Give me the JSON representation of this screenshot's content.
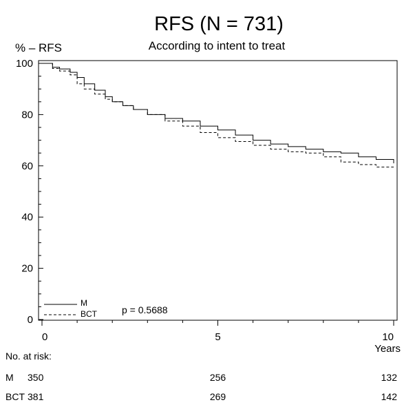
{
  "chart_data": {
    "type": "line",
    "title": "RFS (N = 731)",
    "subtitle": "According to intent to treat",
    "ylabel": "% – RFS",
    "xlabel": "Years",
    "xlim": [
      0,
      10
    ],
    "ylim": [
      0,
      100
    ],
    "x_ticks": [
      0,
      5,
      10
    ],
    "y_ticks": [
      0,
      20,
      40,
      60,
      80,
      100
    ],
    "grid": false,
    "legend_position": "bottom-left",
    "annotation": "p = 0.5688",
    "series": [
      {
        "name": "M",
        "style": "solid",
        "x": [
          0,
          0.3,
          0.5,
          0.8,
          1.0,
          1.2,
          1.5,
          1.8,
          2.0,
          2.3,
          2.6,
          3.0,
          3.5,
          4.0,
          4.5,
          5.0,
          5.5,
          6.0,
          6.5,
          7.0,
          7.5,
          8.0,
          8.5,
          9.0,
          9.5,
          10.0
        ],
        "y": [
          100,
          98.5,
          97.8,
          96.5,
          94.5,
          92,
          89.5,
          87,
          85,
          83.5,
          82,
          80,
          78.5,
          77.5,
          75.5,
          74,
          72,
          70,
          68.5,
          67.5,
          66.5,
          65.5,
          65,
          63.5,
          62.5,
          61
        ]
      },
      {
        "name": "BCT",
        "style": "dashed",
        "x": [
          0,
          0.3,
          0.5,
          0.8,
          1.0,
          1.2,
          1.5,
          1.8,
          2.0,
          2.3,
          2.6,
          3.0,
          3.5,
          4.0,
          4.5,
          5.0,
          5.5,
          6.0,
          6.5,
          7.0,
          7.5,
          8.0,
          8.5,
          9.0,
          9.5,
          10.0
        ],
        "y": [
          100,
          98,
          97,
          95.5,
          92,
          90,
          88,
          86,
          85,
          83.5,
          82,
          80,
          77.5,
          75.5,
          73,
          71,
          69.5,
          68,
          66.5,
          65.5,
          65,
          63.5,
          61.5,
          60.5,
          59.5,
          59.5
        ]
      }
    ],
    "risk_table": {
      "header": "No. at risk:",
      "times": [
        0,
        5,
        10
      ],
      "rows": [
        {
          "label": "M",
          "counts": [
            350,
            256,
            132
          ]
        },
        {
          "label": "BCT",
          "counts": [
            381,
            269,
            142
          ]
        }
      ]
    }
  }
}
